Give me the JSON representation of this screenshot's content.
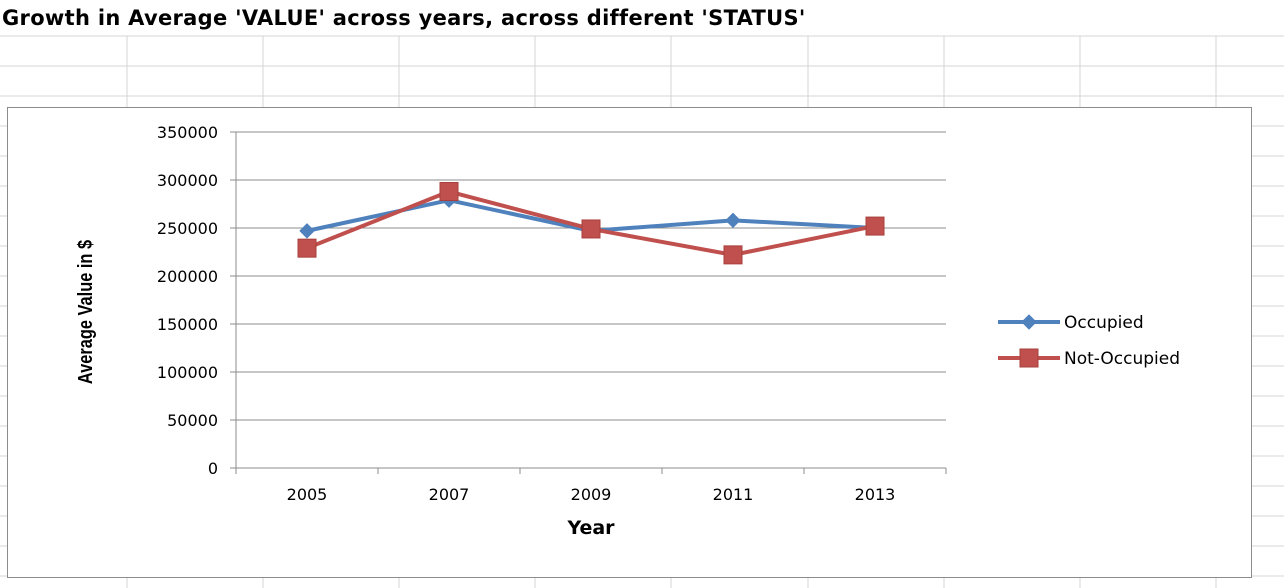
{
  "sheet_title": "Growth in Average 'VALUE' across years, across different 'STATUS'",
  "chart_data": {
    "type": "line",
    "categories": [
      "2005",
      "2007",
      "2009",
      "2011",
      "2013"
    ],
    "series": [
      {
        "name": "Occupied",
        "values": [
          247000,
          279000,
          247000,
          258000,
          250000
        ],
        "color": "#4F81BD",
        "marker": "diamond"
      },
      {
        "name": "Not-Occupied",
        "values": [
          229000,
          288000,
          249000,
          222000,
          252000
        ],
        "color": "#C0504D",
        "marker": "square"
      }
    ],
    "xlabel": "Year",
    "ylabel": "Average Value in $",
    "ylim": [
      0,
      350000
    ],
    "yticks": [
      0,
      50000,
      100000,
      150000,
      200000,
      250000,
      300000,
      350000
    ],
    "grid": true,
    "legend": "right"
  }
}
